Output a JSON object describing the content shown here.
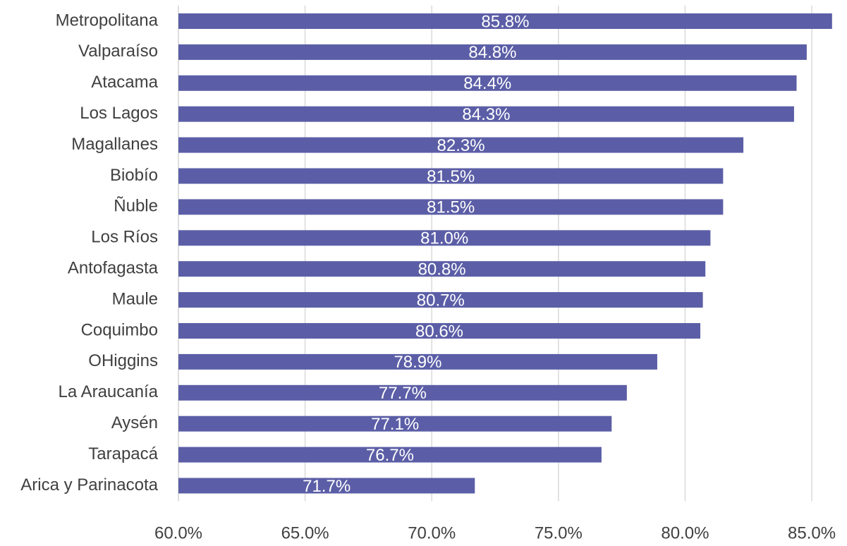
{
  "chart_data": {
    "type": "bar",
    "orientation": "horizontal",
    "categories": [
      "Metropolitana",
      "Valparaíso",
      "Atacama",
      "Los Lagos",
      "Magallanes",
      "Biobío",
      "Ñuble",
      "Los Ríos",
      "Antofagasta",
      "Maule",
      "Coquimbo",
      "OHiggins",
      "La Araucanía",
      "Aysén",
      "Tarapacá",
      "Arica y Parinacota"
    ],
    "values": [
      85.8,
      84.8,
      84.4,
      84.3,
      82.3,
      81.5,
      81.5,
      81.0,
      80.8,
      80.7,
      80.6,
      78.9,
      77.7,
      77.1,
      76.7,
      71.7
    ],
    "data_labels": [
      "85.8%",
      "84.8%",
      "84.4%",
      "84.3%",
      "82.3%",
      "81.5%",
      "81.5%",
      "81.0%",
      "80.8%",
      "80.7%",
      "80.6%",
      "78.9%",
      "77.7%",
      "77.1%",
      "76.7%",
      "71.7%"
    ],
    "x_ticks": [
      60,
      65,
      70,
      75,
      80,
      85
    ],
    "x_tick_labels": [
      "60.0%",
      "65.0%",
      "70.0%",
      "75.0%",
      "80.0%",
      "85.0%"
    ],
    "xlim": [
      60,
      86
    ],
    "grid": true,
    "title": "",
    "xlabel": "",
    "ylabel": "",
    "bar_color": "#5b5ea6",
    "grid_color": "#d9d9d9",
    "text_color": "#404040",
    "label_text_color": "#ffffff"
  }
}
